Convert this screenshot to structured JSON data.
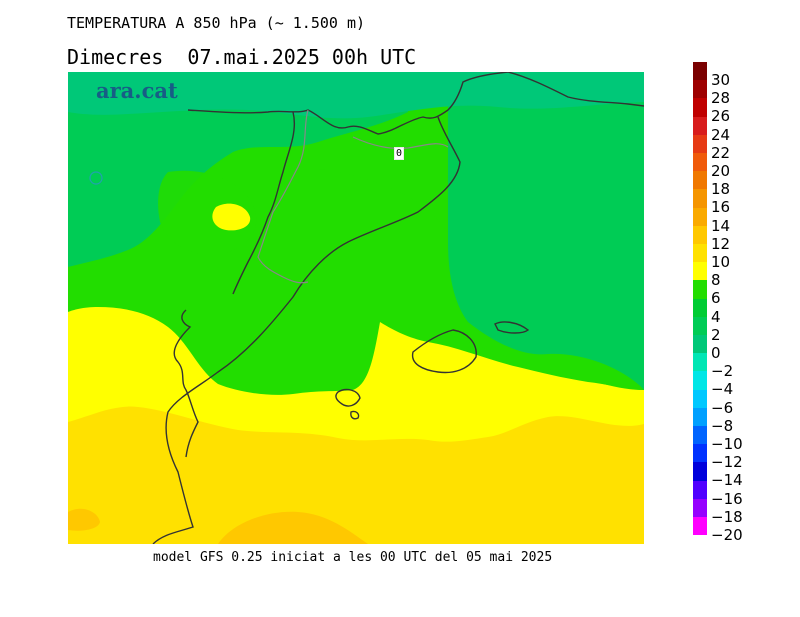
{
  "header": {
    "title": "TEMPERATURA A 850 hPa (~ 1.500 m)",
    "subtitle": "Dimecres  07.mai.2025 00h UTC"
  },
  "map": {
    "brand": "ara.cat",
    "contour_label": "0",
    "colors": {
      "lime": "#22dd00",
      "green": "#00cc55",
      "teal": "#00c878",
      "yellow": "#ffff00",
      "gold": "#ffe100",
      "amber": "#ffc800"
    }
  },
  "legend": {
    "labels": [
      "30",
      "28",
      "26",
      "24",
      "22",
      "20",
      "18",
      "16",
      "14",
      "12",
      "10",
      "8",
      "6",
      "4",
      "2",
      "0",
      "−2",
      "−4",
      "−6",
      "−8",
      "−10",
      "−12",
      "−14",
      "−16",
      "−18",
      "−20"
    ],
    "colors": [
      "#7a0000",
      "#9e0000",
      "#c00000",
      "#d81c1c",
      "#e63a14",
      "#f05a0a",
      "#f07800",
      "#f59500",
      "#faaa00",
      "#ffc800",
      "#ffe100",
      "#ffff00",
      "#22dd00",
      "#00cc33",
      "#00cc55",
      "#00c878",
      "#00e6b4",
      "#00e6e6",
      "#00c8ff",
      "#00a0ff",
      "#0064ff",
      "#0032ff",
      "#0000dc",
      "#5000ff",
      "#9600ff",
      "#ff00ff"
    ]
  },
  "footer": {
    "text": "model GFS 0.25 iniciat a les 00 UTC del 05 mai 2025"
  }
}
